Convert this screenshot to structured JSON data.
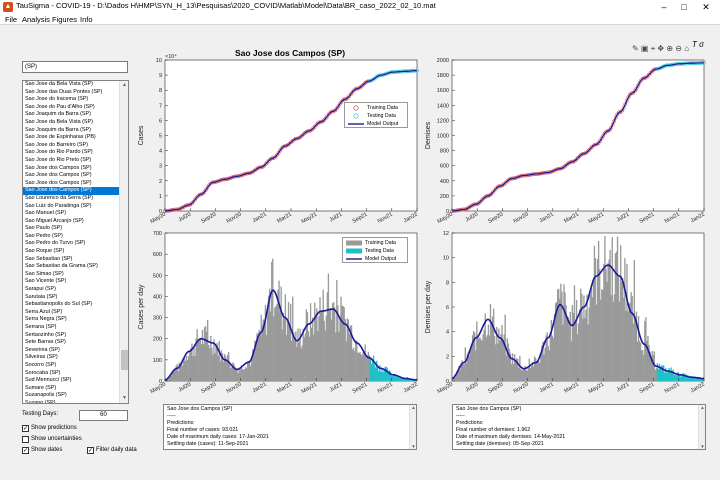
{
  "window": {
    "title": "TauSigma - COVID-19 - D:\\Dados H\\HMP\\SYN_H_13\\Pesquisas\\2020_COVID\\Matlab\\Model\\Data\\BR_caso_2022_02_10.mat",
    "app_icon": "matlab-app-icon"
  },
  "menu": [
    "File",
    "Analysis",
    "Figures",
    "Info"
  ],
  "search": {
    "value": "(SP)"
  },
  "city_list": {
    "selected_index": 14,
    "items": [
      "Sao Jose da Bela Vista (SP)",
      "Sao Jose das Duas Pontes (SP)",
      "Sao Jose do Iracema (SP)",
      "Sao Jose do Pau d'Alho (SP)",
      "Sao Joaquim da Barra (SP)",
      "Sao Jose da Bela Vista (SP)",
      "Sao Joaquim da Barra (SP)",
      "Sao Jose de Espinharas (PB)",
      "Sao Jose do Barreiro (SP)",
      "Sao Jose do Rio Pardo (SP)",
      "Sao Jose do Rio Preto (SP)",
      "Sao Jose dos Campos (SP)",
      "Sao Jose dos Campos (SP)",
      "Sao Jose dos Campos (SP)",
      "Sao Jose dos Campos (SP)",
      "Sao Lourenco da Serra (SP)",
      "Sao Luiz do Paraitinga (SP)",
      "Sao Manuel (SP)",
      "Sao Miguel Arcanjo (SP)",
      "Sao Paulo (SP)",
      "Sao Pedro (SP)",
      "Sao Pedro do Turvo (SP)",
      "Sao Roque (SP)",
      "Sao Sebastiao (SP)",
      "Sao Sebastiao da Grama (SP)",
      "Sao Simao (SP)",
      "Sao Vicente (SP)",
      "Sarapui (SP)",
      "Sarutaia (SP)",
      "Sebastianopolis do Sul (SP)",
      "Serra Azul (SP)",
      "Serra Negra (SP)",
      "Serrana (SP)",
      "Sertaozinho (SP)",
      "Sete Barras (SP)",
      "Severinia (SP)",
      "Silveiras (SP)",
      "Socorro (SP)",
      "Sorocaba (SP)",
      "Sud Mennucci (SP)",
      "Sumare (SP)",
      "Suzanapolis (SP)",
      "Suzano (SP)",
      "Tabapua (SP)",
      "Tabatinga (SP)",
      "Taboao da Serra (SP)",
      "Taciba (SP)",
      "Taguai (SP)",
      "Taiacu (SP)",
      "Taiuva (SP)"
    ]
  },
  "controls": {
    "testing_days_label": "Testing Days:",
    "testing_days_value": "60",
    "show_predictions": "Show predictions",
    "show_uncertainties": "Show uncertainties",
    "show_dates": "Show dates",
    "filter_daily": "Filter daily data",
    "checked": {
      "show_predictions": true,
      "show_uncertainties": false,
      "show_dates": true,
      "filter_daily": true
    }
  },
  "toolbar_icons": [
    "brush-icon",
    "datatip-icon",
    "rotate-icon",
    "pan-icon",
    "zoom-in-icon",
    "zoom-out-icon",
    "home-icon"
  ],
  "toolbar_glyphs": "✎ ▣ ⌖ ✥ ⊕ ⊖ ⌂",
  "figure_title": "Sao Jose dos Campos (SP)",
  "colors": {
    "training_marker": "#e06060",
    "testing_marker": "#40c8d8",
    "model": "#1a1a9a",
    "training_bar": "#9a9a9a",
    "testing_bar": "#20c0c8"
  },
  "chart_data": [
    {
      "type": "scatter",
      "title": "Sao Jose dos Campos (SP)",
      "ylabel": "Cases",
      "y_exponent": "×10⁴",
      "yticks": [
        "0",
        "1",
        "2",
        "3",
        "4",
        "5",
        "6",
        "7",
        "8",
        "9",
        "10"
      ],
      "ylim": [
        0,
        10
      ],
      "xticks": [
        "May20",
        "Jul20",
        "Sep20",
        "Nov20",
        "Jan21",
        "Mar21",
        "May21",
        "Jul21",
        "Sep21",
        "Nov21",
        "Jan22"
      ],
      "x": [
        0,
        1,
        2,
        3,
        4,
        5,
        6,
        7,
        8,
        9,
        10,
        11,
        12,
        13,
        14,
        15,
        16,
        17,
        18,
        19,
        20,
        21
      ],
      "series": [
        {
          "name": "Training Data",
          "values": [
            0,
            0.1,
            0.4,
            1.1,
            1.9,
            2.1,
            2.3,
            2.5,
            2.9,
            3.5,
            4.3,
            4.8,
            5.3,
            5.9,
            6.6,
            7.4,
            8.1,
            8.6,
            null,
            null,
            null,
            null
          ]
        },
        {
          "name": "Testing Data",
          "values": [
            null,
            null,
            null,
            null,
            null,
            null,
            null,
            null,
            null,
            null,
            null,
            null,
            null,
            null,
            null,
            null,
            null,
            8.6,
            9.0,
            9.2,
            9.25,
            9.3
          ]
        },
        {
          "name": "Model Output",
          "values": [
            0,
            0.1,
            0.4,
            1.1,
            1.9,
            2.1,
            2.3,
            2.5,
            2.9,
            3.5,
            4.3,
            4.8,
            5.3,
            5.9,
            6.6,
            7.4,
            8.1,
            8.6,
            9.0,
            9.2,
            9.25,
            9.3
          ]
        }
      ],
      "legend": "inside, right"
    },
    {
      "type": "scatter",
      "ylabel": "Demises",
      "yticks": [
        "0",
        "200",
        "400",
        "600",
        "800",
        "1000",
        "1200",
        "1400",
        "1600",
        "1800",
        "2000"
      ],
      "ylim": [
        0,
        2000
      ],
      "xticks": [
        "May20",
        "Jul20",
        "Sep20",
        "Nov20",
        "Jan21",
        "Mar21",
        "May21",
        "Jul21",
        "Sep21",
        "Nov21",
        "Jan22"
      ],
      "x": [
        0,
        1,
        2,
        3,
        4,
        5,
        6,
        7,
        8,
        9,
        10,
        11,
        12,
        13,
        14,
        15,
        16,
        17,
        18,
        19,
        20,
        21
      ],
      "series": [
        {
          "name": "Training Data",
          "values": [
            0,
            20,
            90,
            200,
            330,
            430,
            470,
            490,
            510,
            560,
            650,
            760,
            880,
            1060,
            1310,
            1560,
            1760,
            1880,
            null,
            null,
            null,
            null
          ]
        },
        {
          "name": "Testing Data",
          "values": [
            null,
            null,
            null,
            null,
            null,
            null,
            null,
            null,
            null,
            null,
            null,
            null,
            null,
            null,
            null,
            null,
            null,
            1880,
            1930,
            1950,
            1958,
            1962
          ]
        },
        {
          "name": "Model Output",
          "values": [
            0,
            20,
            90,
            200,
            330,
            430,
            470,
            490,
            510,
            560,
            650,
            760,
            880,
            1060,
            1310,
            1560,
            1760,
            1880,
            1930,
            1950,
            1958,
            1962
          ]
        }
      ]
    },
    {
      "type": "bar",
      "ylabel": "Cases per day",
      "yticks": [
        "0",
        "100",
        "200",
        "300",
        "400",
        "500",
        "600",
        "700"
      ],
      "ylim": [
        0,
        700
      ],
      "xticks": [
        "May20",
        "Jul20",
        "Sep20",
        "Nov20",
        "Jan21",
        "Mar21",
        "May21",
        "Jul21",
        "Sep21",
        "Nov21",
        "Jan22"
      ],
      "x": [
        0,
        1,
        2,
        3,
        4,
        5,
        6,
        7,
        8,
        9,
        10,
        11,
        12,
        13,
        14,
        15,
        16,
        17,
        18,
        19,
        20,
        21
      ],
      "series": [
        {
          "name": "Training Data",
          "values": [
            20,
            70,
            140,
            200,
            180,
            110,
            60,
            80,
            190,
            400,
            330,
            180,
            260,
            310,
            320,
            260,
            200,
            100,
            null,
            null,
            null,
            null
          ]
        },
        {
          "name": "Testing Data",
          "values": [
            null,
            null,
            null,
            null,
            null,
            null,
            null,
            null,
            null,
            null,
            null,
            null,
            null,
            null,
            null,
            null,
            null,
            70,
            45,
            25,
            10,
            5
          ]
        },
        {
          "name": "Model Output",
          "values": [
            5,
            60,
            140,
            200,
            180,
            100,
            55,
            90,
            230,
            430,
            300,
            190,
            270,
            330,
            340,
            270,
            180,
            110,
            60,
            30,
            12,
            5
          ]
        }
      ],
      "legend": "top-right"
    },
    {
      "type": "bar",
      "ylabel": "Demises per day",
      "yticks": [
        "0",
        "2",
        "4",
        "6",
        "8",
        "10",
        "12"
      ],
      "ylim": [
        0,
        12
      ],
      "xticks": [
        "May20",
        "Jul20",
        "Sep20",
        "Nov20",
        "Jan21",
        "Mar21",
        "May21",
        "Jul21",
        "Sep21",
        "Nov21",
        "Jan22"
      ],
      "x": [
        0,
        1,
        2,
        3,
        4,
        5,
        6,
        7,
        8,
        9,
        10,
        11,
        12,
        13,
        14,
        15,
        16,
        17,
        18,
        19,
        20,
        21
      ],
      "series": [
        {
          "name": "Training Data",
          "values": [
            0.5,
            1.5,
            3,
            5,
            4,
            2,
            1,
            1.5,
            3,
            6,
            5,
            5,
            8,
            9.5,
            9,
            7,
            4,
            2,
            null,
            null,
            null,
            null
          ]
        },
        {
          "name": "Testing Data",
          "values": [
            null,
            null,
            null,
            null,
            null,
            null,
            null,
            null,
            null,
            null,
            null,
            null,
            null,
            null,
            null,
            null,
            null,
            1.2,
            0.8,
            0.5,
            0.3,
            0.2
          ]
        },
        {
          "name": "Model Output",
          "values": [
            0.2,
            1.5,
            3.5,
            5,
            3.5,
            1.8,
            1,
            1.5,
            3.5,
            6.2,
            4.5,
            6,
            8.5,
            9.4,
            8.5,
            5.5,
            3,
            1.2,
            0.8,
            0.5,
            0.3,
            0.2
          ]
        }
      ]
    }
  ],
  "info_cases": {
    "lines": [
      "Sao Jose dos Campos (SP)",
      "-----",
      "Predictions:",
      "    Final number of cases: 93.021",
      "    Date of maximum daily cases: 17-Jan-2021",
      "    Settling date (cases): 11-Sep-2021"
    ]
  },
  "info_deaths": {
    "lines": [
      "Sao Jose dos Campos (SP)",
      "-----",
      "Predictions:",
      "    Final number of demises: 1.962",
      "    Date of maximum daily demises: 14-May-2021",
      "    Settling date (demises): 05-Sep-2021"
    ]
  }
}
